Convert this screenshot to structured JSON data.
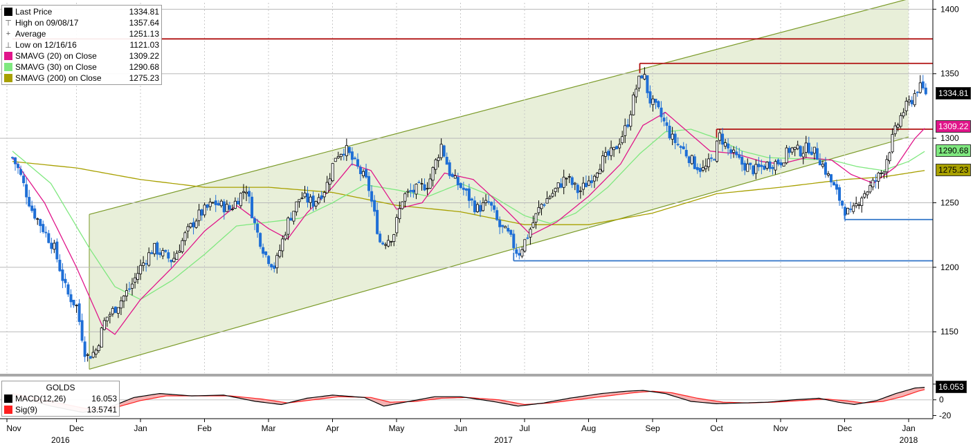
{
  "chart_data": {
    "type": "candlestick",
    "ticker": "GOLDS",
    "price_axis": {
      "range": [
        1118,
        1405
      ],
      "ticks": [
        1150,
        1200,
        1250,
        1300,
        1350,
        1400
      ]
    },
    "macd_axis": {
      "range": [
        -24,
        27
      ],
      "ticks": [
        20,
        0,
        -20
      ]
    },
    "x_axis": {
      "months": [
        "Nov",
        "Dec",
        "Jan",
        "Feb",
        "Mar",
        "Apr",
        "May",
        "Jun",
        "Jul",
        "Aug",
        "Sep",
        "Oct",
        "Nov",
        "Dec",
        "Jan"
      ],
      "years": [
        "2016",
        "2017",
        "2018"
      ]
    },
    "legend": [
      {
        "label": "Last Price",
        "value": "1334.81",
        "glyph": "square",
        "color": "#000000"
      },
      {
        "label": "High on 09/08/17",
        "value": "1357.64",
        "glyph": "⊤",
        "color": "#555555"
      },
      {
        "label": "Average",
        "value": "1251.13",
        "glyph": "+",
        "color": "#555555"
      },
      {
        "label": "Low on 12/16/16",
        "value": "1121.03",
        "glyph": "⊥",
        "color": "#555555"
      },
      {
        "label": "SMAVG (20) on Close",
        "value": "1309.22",
        "glyph": "square",
        "color": "#e0158a"
      },
      {
        "label": "SMAVG (30) on Close",
        "value": "1290.68",
        "glyph": "square",
        "color": "#7fe87f"
      },
      {
        "label": "SMAVG (200) on Close",
        "value": "1275.23",
        "glyph": "square",
        "color": "#a8a000"
      }
    ],
    "macd_legend": {
      "title": "GOLDS",
      "rows": [
        {
          "label": "MACD(12,26)",
          "value": "16.053",
          "color": "#000000"
        },
        {
          "label": "Sig(9)",
          "value": "13.5741",
          "color": "#ff2020"
        }
      ]
    },
    "right_tags": [
      {
        "text": "1334.81",
        "value": 1334.81,
        "bg": "#000000",
        "fg": "#ffffff"
      },
      {
        "text": "1309.22",
        "value": 1309.22,
        "bg": "#e0158a",
        "fg": "#ffffff"
      },
      {
        "text": "1290.68",
        "value": 1290.68,
        "bg": "#7fe87f",
        "fg": "#000000"
      },
      {
        "text": "1275.23",
        "value": 1275.23,
        "bg": "#a8a000",
        "fg": "#000000"
      }
    ],
    "macd_tag": {
      "text": "16.053",
      "value": 16.053,
      "bg": "#000000",
      "fg": "#ffffff"
    },
    "annotations": {
      "channel": {
        "start_month": 1.2,
        "end_month": 14.0,
        "lower_start": 1121,
        "lower_end": 1301,
        "upper_start": 1241,
        "upper_end": 1408,
        "color": "#7a9a28",
        "fill": "#e4ecd2"
      },
      "resistance_lines": [
        {
          "value": 1377,
          "start_month": 0.0,
          "color": "#b01010"
        },
        {
          "value": 1358,
          "start_month": 9.8,
          "color": "#b01010"
        },
        {
          "value": 1307,
          "start_month": 11.0,
          "color": "#b01010"
        }
      ],
      "support_lines": [
        {
          "value": 1205,
          "start_month": 7.83,
          "color": "#2f73c8"
        },
        {
          "value": 1237,
          "start_month": 13.0,
          "color": "#2f73c8"
        }
      ]
    },
    "series_colors": {
      "up": "#000000",
      "down": "#1f6fd6",
      "sma20": "#e0158a",
      "sma30": "#7fe87f",
      "sma200": "#a8a000",
      "macd": "#000000",
      "signal": "#ff2020",
      "histogram": "#f29a9a"
    },
    "price_anchors": [
      [
        0,
        1285
      ],
      [
        0.1,
        1275
      ],
      [
        0.3,
        1245
      ],
      [
        0.5,
        1228
      ],
      [
        0.65,
        1215
      ],
      [
        0.85,
        1180
      ],
      [
        1.0,
        1170
      ],
      [
        1.15,
        1130
      ],
      [
        1.3,
        1135
      ],
      [
        1.45,
        1160
      ],
      [
        1.6,
        1168
      ],
      [
        1.85,
        1185
      ],
      [
        2.0,
        1200
      ],
      [
        2.2,
        1215
      ],
      [
        2.5,
        1205
      ],
      [
        2.7,
        1225
      ],
      [
        2.9,
        1240
      ],
      [
        3.15,
        1250
      ],
      [
        3.4,
        1245
      ],
      [
        3.65,
        1262
      ],
      [
        3.8,
        1230
      ],
      [
        3.95,
        1210
      ],
      [
        4.1,
        1200
      ],
      [
        4.3,
        1235
      ],
      [
        4.5,
        1255
      ],
      [
        4.7,
        1250
      ],
      [
        4.9,
        1262
      ],
      [
        5.05,
        1287
      ],
      [
        5.2,
        1292
      ],
      [
        5.35,
        1280
      ],
      [
        5.55,
        1265
      ],
      [
        5.75,
        1218
      ],
      [
        5.95,
        1225
      ],
      [
        6.1,
        1255
      ],
      [
        6.3,
        1260
      ],
      [
        6.5,
        1265
      ],
      [
        6.7,
        1295
      ],
      [
        6.85,
        1270
      ],
      [
        7.05,
        1260
      ],
      [
        7.25,
        1245
      ],
      [
        7.45,
        1250
      ],
      [
        7.6,
        1232
      ],
      [
        7.75,
        1225
      ],
      [
        7.9,
        1210
      ],
      [
        8.05,
        1225
      ],
      [
        8.25,
        1248
      ],
      [
        8.45,
        1258
      ],
      [
        8.65,
        1270
      ],
      [
        8.85,
        1258
      ],
      [
        9.05,
        1270
      ],
      [
        9.2,
        1282
      ],
      [
        9.4,
        1290
      ],
      [
        9.6,
        1310
      ],
      [
        9.75,
        1340
      ],
      [
        9.85,
        1352
      ],
      [
        9.95,
        1330
      ],
      [
        10.1,
        1320
      ],
      [
        10.3,
        1300
      ],
      [
        10.5,
        1290
      ],
      [
        10.65,
        1280
      ],
      [
        10.8,
        1275
      ],
      [
        10.95,
        1285
      ],
      [
        11.05,
        1302
      ],
      [
        11.2,
        1290
      ],
      [
        11.4,
        1280
      ],
      [
        11.6,
        1275
      ],
      [
        11.8,
        1280
      ],
      [
        12.0,
        1282
      ],
      [
        12.15,
        1292
      ],
      [
        12.3,
        1290
      ],
      [
        12.45,
        1293
      ],
      [
        12.6,
        1285
      ],
      [
        12.75,
        1270
      ],
      [
        12.9,
        1255
      ],
      [
        13.0,
        1245
      ],
      [
        13.1,
        1240
      ],
      [
        13.25,
        1255
      ],
      [
        13.4,
        1262
      ],
      [
        13.6,
        1275
      ],
      [
        13.75,
        1300
      ],
      [
        13.9,
        1320
      ],
      [
        14.05,
        1330
      ],
      [
        14.15,
        1340
      ],
      [
        14.28,
        1335
      ]
    ],
    "sma20_anchors": [
      [
        0,
        1285
      ],
      [
        0.5,
        1250
      ],
      [
        1.0,
        1200
      ],
      [
        1.4,
        1155
      ],
      [
        1.6,
        1148
      ],
      [
        2.0,
        1175
      ],
      [
        2.5,
        1200
      ],
      [
        3.0,
        1228
      ],
      [
        3.5,
        1248
      ],
      [
        4.0,
        1230
      ],
      [
        4.3,
        1222
      ],
      [
        4.6,
        1242
      ],
      [
        5.0,
        1262
      ],
      [
        5.3,
        1280
      ],
      [
        5.6,
        1275
      ],
      [
        6.0,
        1245
      ],
      [
        6.4,
        1250
      ],
      [
        6.75,
        1273
      ],
      [
        7.2,
        1268
      ],
      [
        7.7,
        1245
      ],
      [
        8.1,
        1225
      ],
      [
        8.5,
        1235
      ],
      [
        9.0,
        1255
      ],
      [
        9.5,
        1280
      ],
      [
        9.85,
        1310
      ],
      [
        10.2,
        1320
      ],
      [
        10.55,
        1305
      ],
      [
        10.9,
        1290
      ],
      [
        11.3,
        1288
      ],
      [
        11.7,
        1282
      ],
      [
        12.0,
        1280
      ],
      [
        12.4,
        1285
      ],
      [
        12.8,
        1283
      ],
      [
        13.1,
        1272
      ],
      [
        13.45,
        1265
      ],
      [
        13.8,
        1278
      ],
      [
        14.1,
        1300
      ],
      [
        14.28,
        1309.22
      ]
    ],
    "sma30_anchors": [
      [
        0,
        1290
      ],
      [
        0.6,
        1265
      ],
      [
        1.2,
        1215
      ],
      [
        1.6,
        1185
      ],
      [
        2.0,
        1175
      ],
      [
        2.5,
        1190
      ],
      [
        3.0,
        1210
      ],
      [
        3.5,
        1232
      ],
      [
        4.0,
        1235
      ],
      [
        4.5,
        1238
      ],
      [
        5.0,
        1250
      ],
      [
        5.5,
        1264
      ],
      [
        6.0,
        1260
      ],
      [
        6.5,
        1255
      ],
      [
        7.0,
        1265
      ],
      [
        7.5,
        1255
      ],
      [
        8.0,
        1240
      ],
      [
        8.4,
        1234
      ],
      [
        8.8,
        1242
      ],
      [
        9.3,
        1262
      ],
      [
        9.8,
        1288
      ],
      [
        10.2,
        1305
      ],
      [
        10.6,
        1307
      ],
      [
        11.0,
        1300
      ],
      [
        11.4,
        1290
      ],
      [
        11.8,
        1285
      ],
      [
        12.3,
        1284
      ],
      [
        12.8,
        1283
      ],
      [
        13.2,
        1278
      ],
      [
        13.6,
        1275
      ],
      [
        14.0,
        1282
      ],
      [
        14.28,
        1290.68
      ]
    ],
    "sma200_anchors": [
      [
        0,
        1282
      ],
      [
        1.0,
        1277
      ],
      [
        2.0,
        1268
      ],
      [
        3.0,
        1262
      ],
      [
        4.0,
        1262
      ],
      [
        5.0,
        1258
      ],
      [
        6.0,
        1248
      ],
      [
        7.0,
        1243
      ],
      [
        8.0,
        1233
      ],
      [
        9.0,
        1233
      ],
      [
        10.0,
        1242
      ],
      [
        11.0,
        1257
      ],
      [
        12.0,
        1262
      ],
      [
        13.0,
        1268
      ],
      [
        13.6,
        1270
      ],
      [
        14.28,
        1275.23
      ]
    ],
    "macd_anchors": [
      [
        0,
        5
      ],
      [
        0.6,
        -8
      ],
      [
        1.1,
        -16
      ],
      [
        1.5,
        -10
      ],
      [
        1.9,
        3
      ],
      [
        2.3,
        8
      ],
      [
        2.8,
        5
      ],
      [
        3.3,
        6
      ],
      [
        3.8,
        -2
      ],
      [
        4.2,
        -6
      ],
      [
        4.6,
        2
      ],
      [
        5.0,
        6
      ],
      [
        5.5,
        3
      ],
      [
        5.8,
        -8
      ],
      [
        6.2,
        -2
      ],
      [
        6.6,
        4
      ],
      [
        7.0,
        4
      ],
      [
        7.5,
        -2
      ],
      [
        7.9,
        -8
      ],
      [
        8.3,
        -4
      ],
      [
        8.7,
        2
      ],
      [
        9.2,
        8
      ],
      [
        9.6,
        11
      ],
      [
        9.85,
        12
      ],
      [
        10.2,
        8
      ],
      [
        10.6,
        -2
      ],
      [
        11.0,
        -5
      ],
      [
        11.4,
        -4
      ],
      [
        11.8,
        -3
      ],
      [
        12.2,
        0
      ],
      [
        12.6,
        2
      ],
      [
        12.9,
        -3
      ],
      [
        13.15,
        -6
      ],
      [
        13.5,
        -1
      ],
      [
        13.8,
        8
      ],
      [
        14.1,
        15
      ],
      [
        14.28,
        16.053
      ]
    ],
    "signal_anchors": [
      [
        0,
        8
      ],
      [
        0.6,
        -2
      ],
      [
        1.2,
        -12
      ],
      [
        1.6,
        -10
      ],
      [
        2.0,
        -1
      ],
      [
        2.4,
        5
      ],
      [
        2.9,
        5
      ],
      [
        3.4,
        5
      ],
      [
        3.9,
        1
      ],
      [
        4.3,
        -4
      ],
      [
        4.7,
        0
      ],
      [
        5.1,
        4
      ],
      [
        5.6,
        3
      ],
      [
        5.9,
        -3
      ],
      [
        6.3,
        -2
      ],
      [
        6.7,
        2
      ],
      [
        7.1,
        3
      ],
      [
        7.6,
        0
      ],
      [
        8.0,
        -6
      ],
      [
        8.4,
        -4
      ],
      [
        8.8,
        0
      ],
      [
        9.3,
        5
      ],
      [
        9.7,
        9
      ],
      [
        10.0,
        11
      ],
      [
        10.3,
        9
      ],
      [
        10.7,
        2
      ],
      [
        11.1,
        -3
      ],
      [
        11.5,
        -4
      ],
      [
        11.9,
        -3
      ],
      [
        12.3,
        -1
      ],
      [
        12.7,
        1
      ],
      [
        13.0,
        -1
      ],
      [
        13.3,
        -4
      ],
      [
        13.6,
        -2
      ],
      [
        13.9,
        4
      ],
      [
        14.15,
        11
      ],
      [
        14.28,
        13.5741
      ]
    ]
  }
}
